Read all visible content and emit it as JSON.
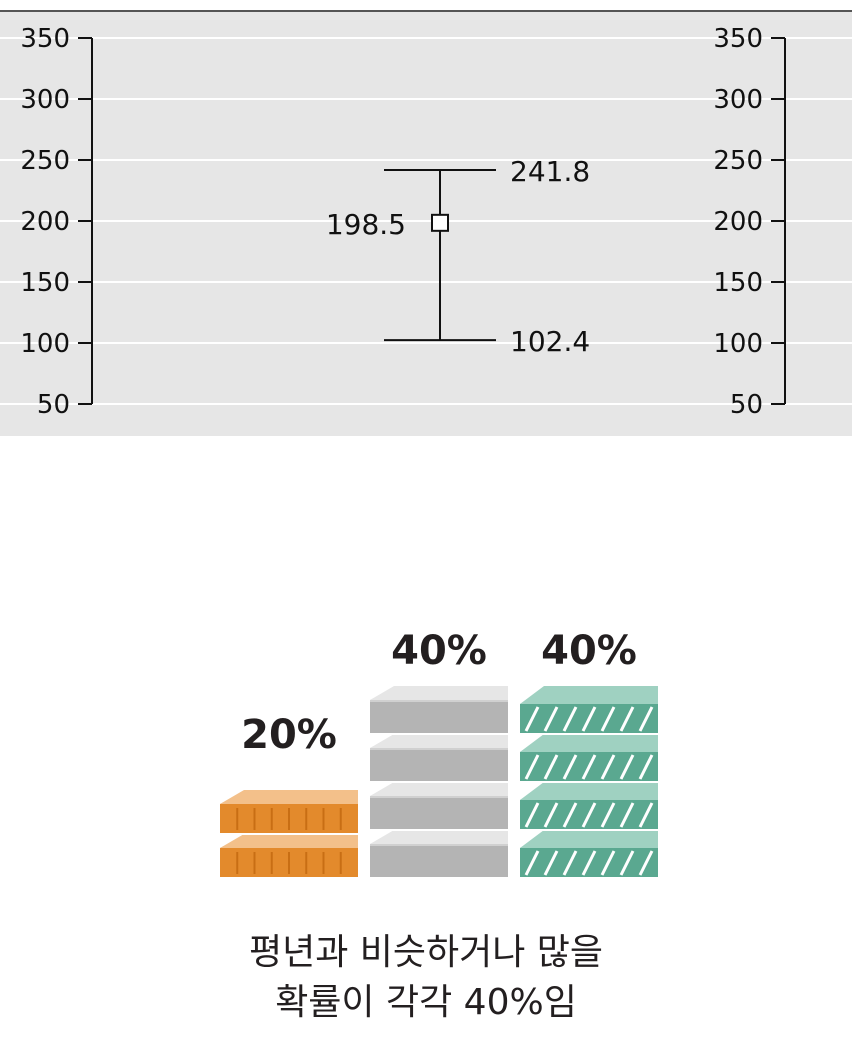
{
  "chart_data": {
    "type": "errorbar",
    "y_ticks": [
      "350",
      "300",
      "250",
      "200",
      "150",
      "100",
      "50"
    ],
    "ylim": [
      50,
      350
    ],
    "grid": true,
    "point": {
      "value": 198.5,
      "label": "198.5"
    },
    "upper": {
      "value": 241.8,
      "label": "241.8"
    },
    "lower": {
      "value": 102.4,
      "label": "102.4"
    }
  },
  "probabilities": [
    {
      "label": "20%",
      "value": 20,
      "color": "#e38a2c",
      "pattern": "orange-bricks"
    },
    {
      "label": "40%",
      "value": 40,
      "color": "#b3b3b3",
      "pattern": "gray-slabs"
    },
    {
      "label": "40%",
      "value": 40,
      "color": "#5aa890",
      "pattern": "green-striped"
    }
  ],
  "caption": {
    "line1": "평년과 비슷하거나 많을",
    "line2": "확률이 각각 40%임"
  }
}
